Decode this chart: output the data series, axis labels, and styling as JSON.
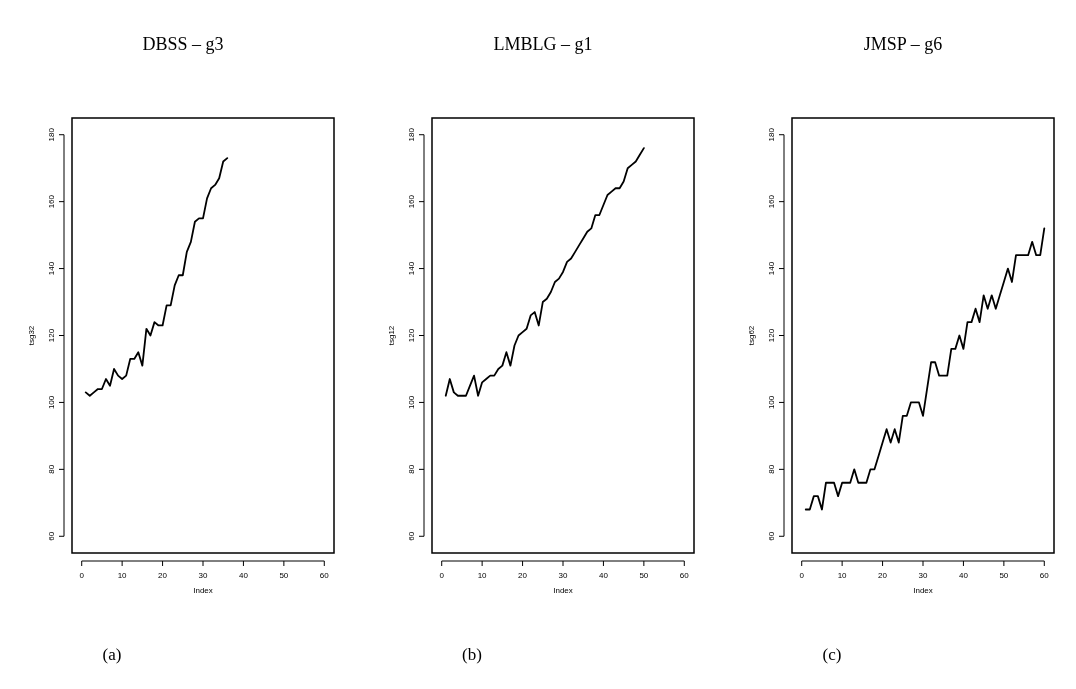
{
  "chart_data": [
    {
      "type": "line",
      "title": "DBSS – g3",
      "xlabel": "Index",
      "ylabel": "tsg32",
      "annotations": [
        "(a)"
      ],
      "color": "#000000",
      "xlim": [
        -2.4,
        62.4
      ],
      "ylim": [
        55,
        185
      ],
      "xticks": [
        0,
        10,
        20,
        30,
        40,
        50,
        60
      ],
      "yticks": [
        60,
        80,
        100,
        120,
        140,
        160,
        180
      ],
      "x": [
        1,
        2,
        3,
        4,
        5,
        6,
        7,
        8,
        9,
        10,
        11,
        12,
        13,
        14,
        15,
        16,
        17,
        18,
        19,
        20,
        21,
        22,
        23,
        24,
        25,
        26,
        27,
        28,
        29,
        30,
        31,
        32,
        33,
        34,
        35,
        36
      ],
      "values": [
        103,
        102,
        103,
        104,
        104,
        107,
        105,
        110,
        108,
        107,
        108,
        113,
        113,
        115,
        111,
        122,
        120,
        124,
        123,
        123,
        129,
        129,
        135,
        138,
        138,
        145,
        148,
        154,
        155,
        155,
        161,
        164,
        165,
        167,
        172,
        173
      ]
    },
    {
      "type": "line",
      "title": "LMBLG – g1",
      "xlabel": "Index",
      "ylabel": "tsg12",
      "annotations": [
        "(b)"
      ],
      "color": "#000000",
      "xlim": [
        -2.4,
        62.4
      ],
      "ylim": [
        55,
        185
      ],
      "xticks": [
        0,
        10,
        20,
        30,
        40,
        50,
        60
      ],
      "yticks": [
        60,
        80,
        100,
        120,
        140,
        160,
        180
      ],
      "x": [
        1,
        2,
        3,
        4,
        5,
        6,
        7,
        8,
        9,
        10,
        11,
        12,
        13,
        14,
        15,
        16,
        17,
        18,
        19,
        20,
        21,
        22,
        23,
        24,
        25,
        26,
        27,
        28,
        29,
        30,
        31,
        32,
        33,
        34,
        35,
        36,
        37,
        38,
        39,
        40,
        41,
        42,
        43,
        44,
        45,
        46,
        47,
        48,
        49,
        50
      ],
      "values": [
        102,
        107,
        103,
        102,
        102,
        102,
        105,
        108,
        102,
        106,
        107,
        108,
        108,
        110,
        111,
        115,
        111,
        117,
        120,
        121,
        122,
        126,
        127,
        123,
        130,
        131,
        133,
        136,
        137,
        139,
        142,
        143,
        145,
        147,
        149,
        151,
        152,
        156,
        156,
        159,
        162,
        163,
        164,
        164,
        166,
        170,
        171,
        172,
        174,
        176
      ]
    },
    {
      "type": "line",
      "title": "JMSP – g6",
      "xlabel": "Index",
      "ylabel": "tsg62",
      "annotations": [
        "(c)"
      ],
      "color": "#000000",
      "xlim": [
        -2.4,
        62.4
      ],
      "ylim": [
        55,
        185
      ],
      "xticks": [
        0,
        10,
        20,
        30,
        40,
        50,
        60
      ],
      "yticks": [
        60,
        80,
        100,
        120,
        140,
        160,
        180
      ],
      "x": [
        1,
        2,
        3,
        4,
        5,
        6,
        7,
        8,
        9,
        10,
        11,
        12,
        13,
        14,
        15,
        16,
        17,
        18,
        19,
        20,
        21,
        22,
        23,
        24,
        25,
        26,
        27,
        28,
        29,
        30,
        31,
        32,
        33,
        34,
        35,
        36,
        37,
        38,
        39,
        40,
        41,
        42,
        43,
        44,
        45,
        46,
        47,
        48,
        49,
        50,
        51,
        52,
        53,
        54,
        55,
        56,
        57,
        58,
        59,
        60
      ],
      "values": [
        68,
        68,
        72,
        72,
        68,
        76,
        76,
        76,
        72,
        76,
        76,
        76,
        80,
        76,
        76,
        76,
        80,
        80,
        84,
        88,
        92,
        88,
        92,
        88,
        96,
        96,
        100,
        100,
        100,
        96,
        104,
        112,
        112,
        108,
        108,
        108,
        116,
        116,
        120,
        116,
        124,
        124,
        128,
        124,
        132,
        128,
        132,
        128,
        132,
        136,
        140,
        136,
        144,
        144,
        144,
        144,
        148,
        144,
        144,
        152
      ]
    }
  ]
}
